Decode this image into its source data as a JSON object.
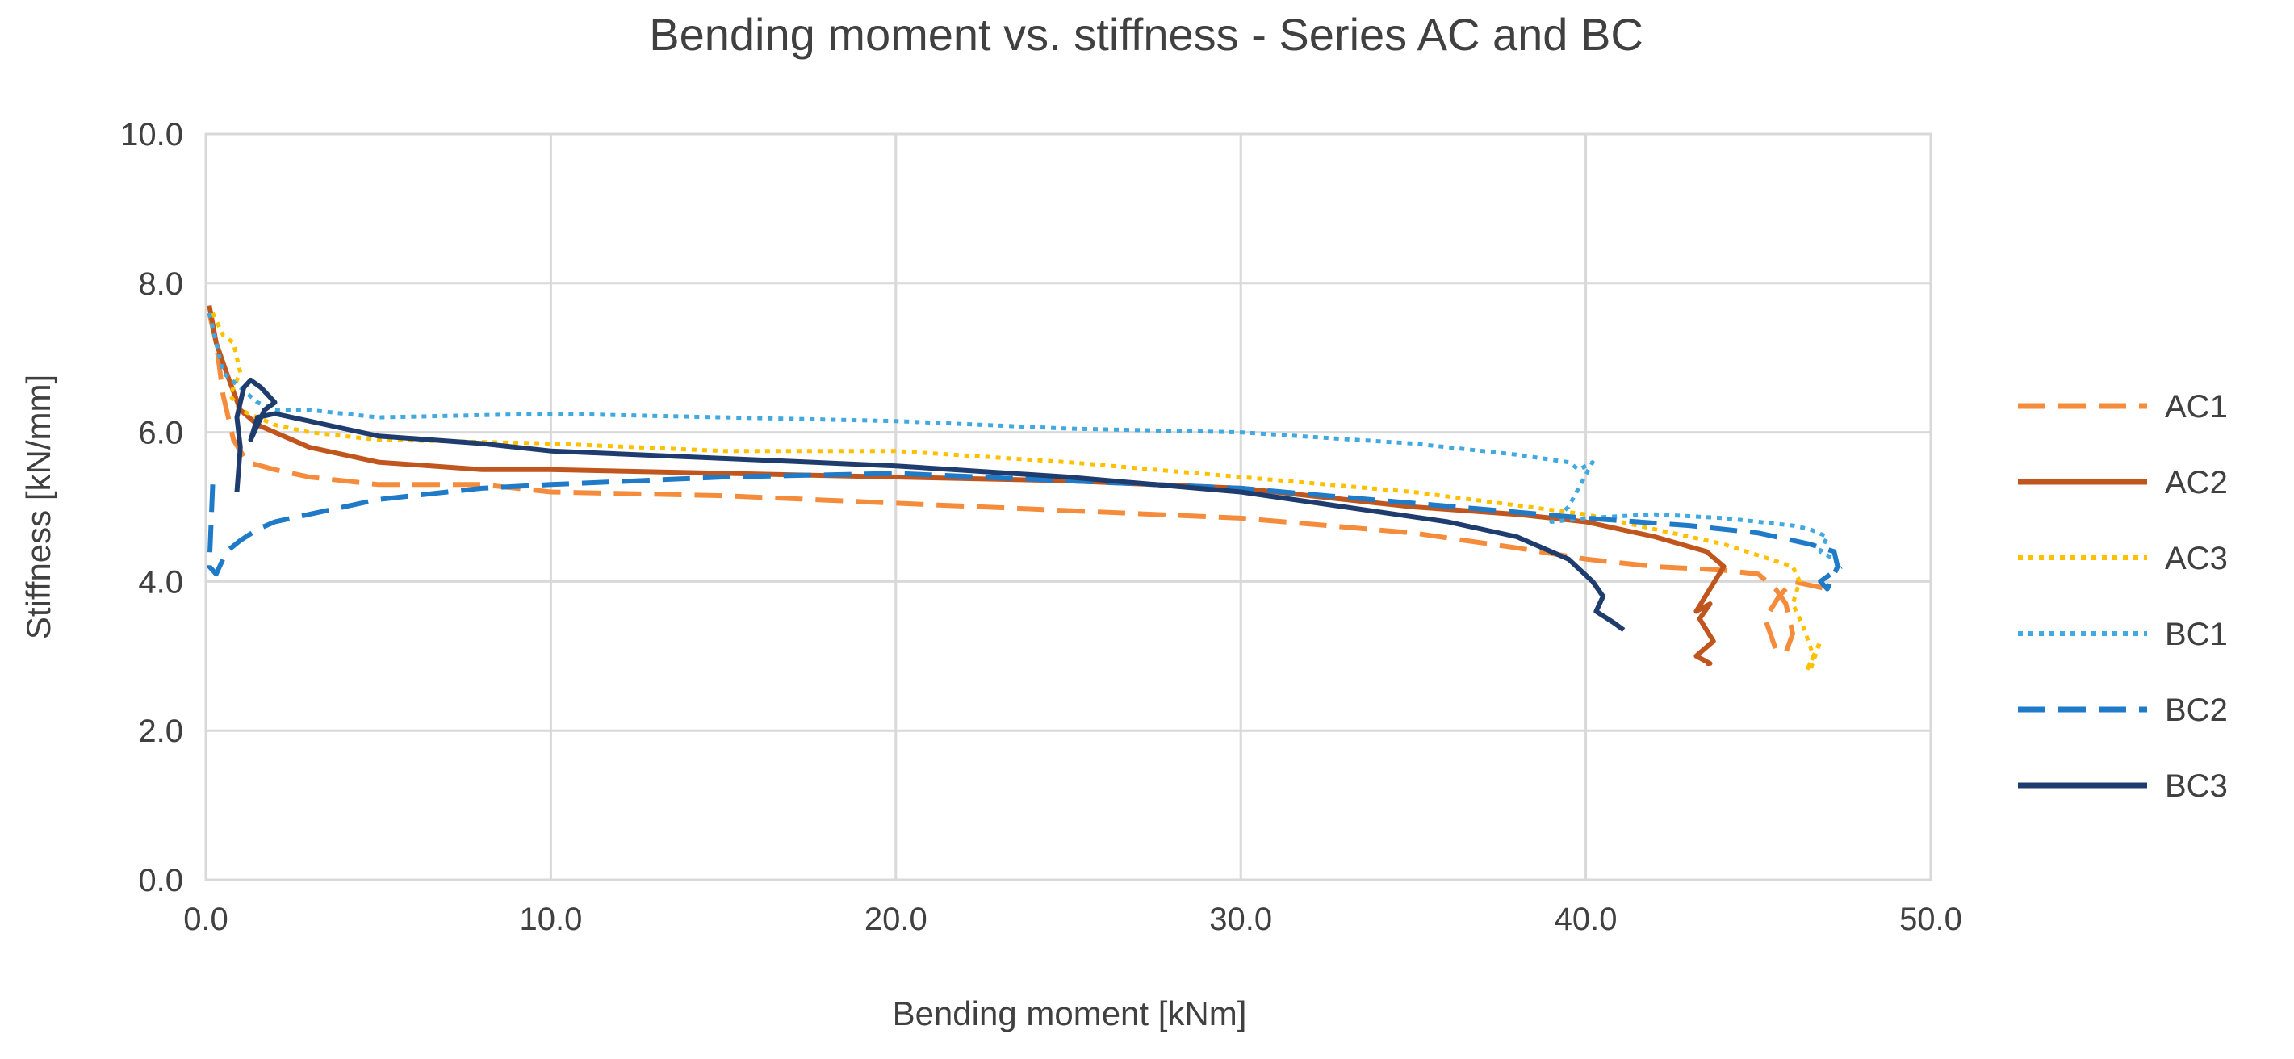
{
  "chart_data": {
    "type": "line",
    "title": "Bending moment vs. stiffness  - Series AC and  BC",
    "xlabel": "Bending moment [kNm]",
    "ylabel": "Stiffness [kN/mm]",
    "xlim": [
      0,
      50
    ],
    "ylim": [
      0,
      10
    ],
    "xticks": [
      0,
      10,
      20,
      30,
      40,
      50
    ],
    "yticks": [
      0,
      2,
      4,
      6,
      8,
      10
    ],
    "xtick_labels": [
      "0.0",
      "10.0",
      "20.0",
      "30.0",
      "40.0",
      "50.0"
    ],
    "ytick_labels": [
      "0.0",
      "2.0",
      "4.0",
      "6.0",
      "8.0",
      "10.0"
    ],
    "grid": true,
    "legend_position": "right",
    "series": [
      {
        "name": "AC1",
        "color": "#F58C3C",
        "dash": "dashed",
        "x": [
          0.1,
          0.3,
          0.5,
          0.8,
          1.2,
          2,
          3,
          5,
          8,
          10,
          15,
          20,
          25,
          30,
          35,
          38,
          40,
          42,
          44,
          45,
          45.5,
          45.8,
          46,
          45.8,
          45.5,
          45.2,
          45.6,
          46,
          46.5,
          47
        ],
        "y": [
          7.6,
          7.2,
          6.5,
          5.9,
          5.6,
          5.5,
          5.4,
          5.3,
          5.3,
          5.2,
          5.15,
          5.05,
          4.95,
          4.85,
          4.65,
          4.45,
          4.3,
          4.2,
          4.15,
          4.1,
          3.9,
          3.7,
          3.3,
          3.05,
          3.1,
          3.5,
          3.8,
          4.0,
          3.95,
          3.9
        ]
      },
      {
        "name": "AC2",
        "color": "#C0551E",
        "dash": "solid",
        "x": [
          0.1,
          0.3,
          0.6,
          1,
          1.5,
          2,
          3,
          5,
          8,
          10,
          15,
          20,
          25,
          30,
          35,
          38,
          40,
          42,
          43.5,
          44,
          43.6,
          43.2,
          43.6,
          43.3,
          43.7,
          43.2,
          43.6,
          43.5
        ],
        "y": [
          7.7,
          7.2,
          6.8,
          6.3,
          6.1,
          6.0,
          5.8,
          5.6,
          5.5,
          5.5,
          5.45,
          5.4,
          5.35,
          5.25,
          5.0,
          4.9,
          4.8,
          4.6,
          4.4,
          4.2,
          3.9,
          3.6,
          3.7,
          3.5,
          3.2,
          3.0,
          2.9,
          2.9
        ]
      },
      {
        "name": "AC3",
        "color": "#FFC000",
        "dash": "dotted",
        "x": [
          0.2,
          0.5,
          0.8,
          1,
          0.7,
          1,
          1.5,
          2,
          3,
          5,
          10,
          15,
          20,
          25,
          30,
          35,
          40,
          44,
          46,
          46.2,
          46.0,
          46.3,
          46.6,
          46.4,
          46.8,
          46.5
        ],
        "y": [
          7.6,
          7.3,
          7.2,
          6.8,
          6.5,
          6.3,
          6.2,
          6.1,
          6.0,
          5.9,
          5.85,
          5.75,
          5.75,
          5.6,
          5.4,
          5.2,
          4.9,
          4.5,
          4.2,
          4.0,
          3.7,
          3.4,
          3.0,
          2.8,
          3.2,
          2.8
        ]
      },
      {
        "name": "BC1",
        "color": "#41A8E0",
        "dash": "dotted",
        "x": [
          0.1,
          0.5,
          1,
          1.5,
          2,
          3,
          5,
          10,
          15,
          20,
          25,
          30,
          35,
          38,
          39.5,
          39.8,
          40.2,
          39.5,
          39,
          40,
          42,
          44,
          45,
          46,
          46.5,
          47,
          46.8,
          47.2
        ],
        "y": [
          7.6,
          6.8,
          6.6,
          6.4,
          6.3,
          6.3,
          6.2,
          6.25,
          6.2,
          6.15,
          6.05,
          6.0,
          5.85,
          5.7,
          5.6,
          5.5,
          5.6,
          5.0,
          4.8,
          4.85,
          4.9,
          4.85,
          4.8,
          4.75,
          4.7,
          4.6,
          4.4,
          4.3
        ]
      },
      {
        "name": "BC2",
        "color": "#1F7AC8",
        "dash": "dashed",
        "x": [
          0.2,
          0.1,
          0.3,
          0.6,
          1,
          1.5,
          2,
          3,
          5,
          8,
          10,
          15,
          20,
          25,
          30,
          35,
          40,
          43,
          45,
          46.5,
          47.2,
          47.3,
          47.0,
          46.8,
          47.4
        ],
        "y": [
          5.3,
          4.2,
          4.1,
          4.4,
          4.55,
          4.7,
          4.8,
          4.9,
          5.1,
          5.25,
          5.3,
          5.4,
          5.45,
          5.35,
          5.25,
          5.05,
          4.85,
          4.75,
          4.65,
          4.5,
          4.4,
          4.2,
          3.9,
          4.0,
          4.2
        ]
      },
      {
        "name": "BC3",
        "color": "#1F3C6E",
        "dash": "solid",
        "x": [
          0.9,
          1.0,
          0.9,
          1.1,
          1.3,
          1.6,
          1.8,
          2.0,
          1.7,
          1.5,
          1.3,
          1.5,
          2,
          3,
          4,
          5,
          8,
          10,
          15,
          20,
          25,
          30,
          33,
          36,
          38,
          39.5,
          40.2,
          40.5,
          40.3,
          40.8,
          41.1
        ],
        "y": [
          5.2,
          5.8,
          6.2,
          6.6,
          6.7,
          6.6,
          6.5,
          6.4,
          6.3,
          6.1,
          5.9,
          6.2,
          6.25,
          6.15,
          6.05,
          5.95,
          5.85,
          5.75,
          5.65,
          5.55,
          5.4,
          5.2,
          5.0,
          4.8,
          4.6,
          4.3,
          4.0,
          3.8,
          3.6,
          3.45,
          3.35
        ]
      }
    ]
  }
}
